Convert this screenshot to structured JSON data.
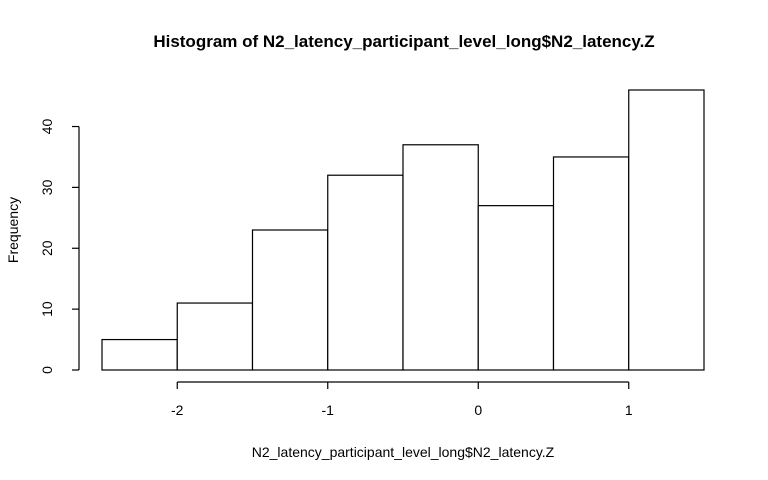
{
  "chart_data": {
    "type": "bar",
    "title": "Histogram of N2_latency_participant_level_long$N2_latency.Z",
    "xlabel": "N2_latency_participant_level_long$N2_latency.Z",
    "ylabel": "Frequency",
    "bins": [
      {
        "x0": -2.5,
        "x1": -2.0,
        "count": 5
      },
      {
        "x0": -2.0,
        "x1": -1.5,
        "count": 11
      },
      {
        "x0": -1.5,
        "x1": -1.0,
        "count": 23
      },
      {
        "x0": -1.0,
        "x1": -0.5,
        "count": 32
      },
      {
        "x0": -0.5,
        "x1": 0.0,
        "count": 37
      },
      {
        "x0": 0.0,
        "x1": 0.5,
        "count": 27
      },
      {
        "x0": 0.5,
        "x1": 1.0,
        "count": 35
      },
      {
        "x0": 1.0,
        "x1": 1.5,
        "count": 46
      }
    ],
    "xticks": [
      -2,
      -1,
      0,
      1
    ],
    "xtick_labels": [
      "-2",
      "-1",
      "0",
      "1"
    ],
    "yticks": [
      0,
      10,
      20,
      30,
      40
    ],
    "ytick_labels": [
      "0",
      "10",
      "20",
      "30",
      "40"
    ],
    "xlim": [
      -2.5,
      1.5
    ],
    "ylim": [
      0,
      46
    ],
    "grid": false,
    "legend": "none"
  }
}
